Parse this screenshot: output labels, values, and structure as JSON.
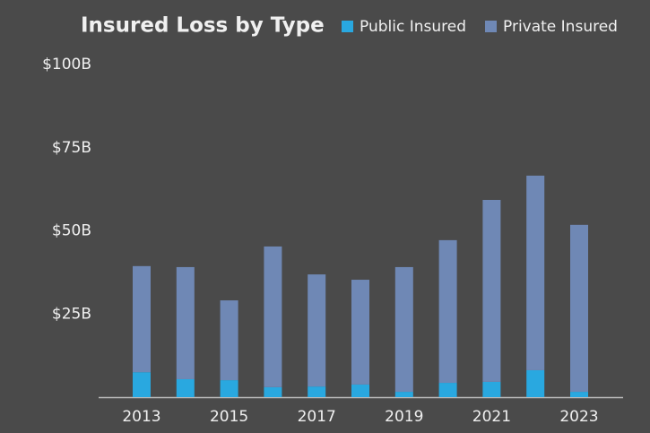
{
  "chart_data": {
    "type": "stacked_bar",
    "title": "Insured Loss by Type",
    "categories": [
      "2013",
      null,
      "2015",
      null,
      "2017",
      null,
      "2019",
      null,
      "2021",
      null,
      "2023"
    ],
    "series": [
      {
        "name": "Public Insured",
        "color": "#29a8e0",
        "values": [
          7.5,
          5.4,
          5.1,
          3.0,
          3.2,
          3.8,
          1.6,
          4.3,
          4.6,
          8.1,
          1.6
        ]
      },
      {
        "name": "Private Insured",
        "color": "#6f88b5",
        "values": [
          31.9,
          33.7,
          24.0,
          42.3,
          33.7,
          31.5,
          37.5,
          42.9,
          54.7,
          58.5,
          50.2
        ]
      }
    ],
    "ylim": [
      0,
      100
    ],
    "yticks": [
      {
        "value": 25,
        "label": "$25B"
      },
      {
        "value": 50,
        "label": "$50B"
      },
      {
        "value": 75,
        "label": "$75B"
      },
      {
        "value": 100,
        "label": "$100B"
      }
    ],
    "grid": false
  }
}
